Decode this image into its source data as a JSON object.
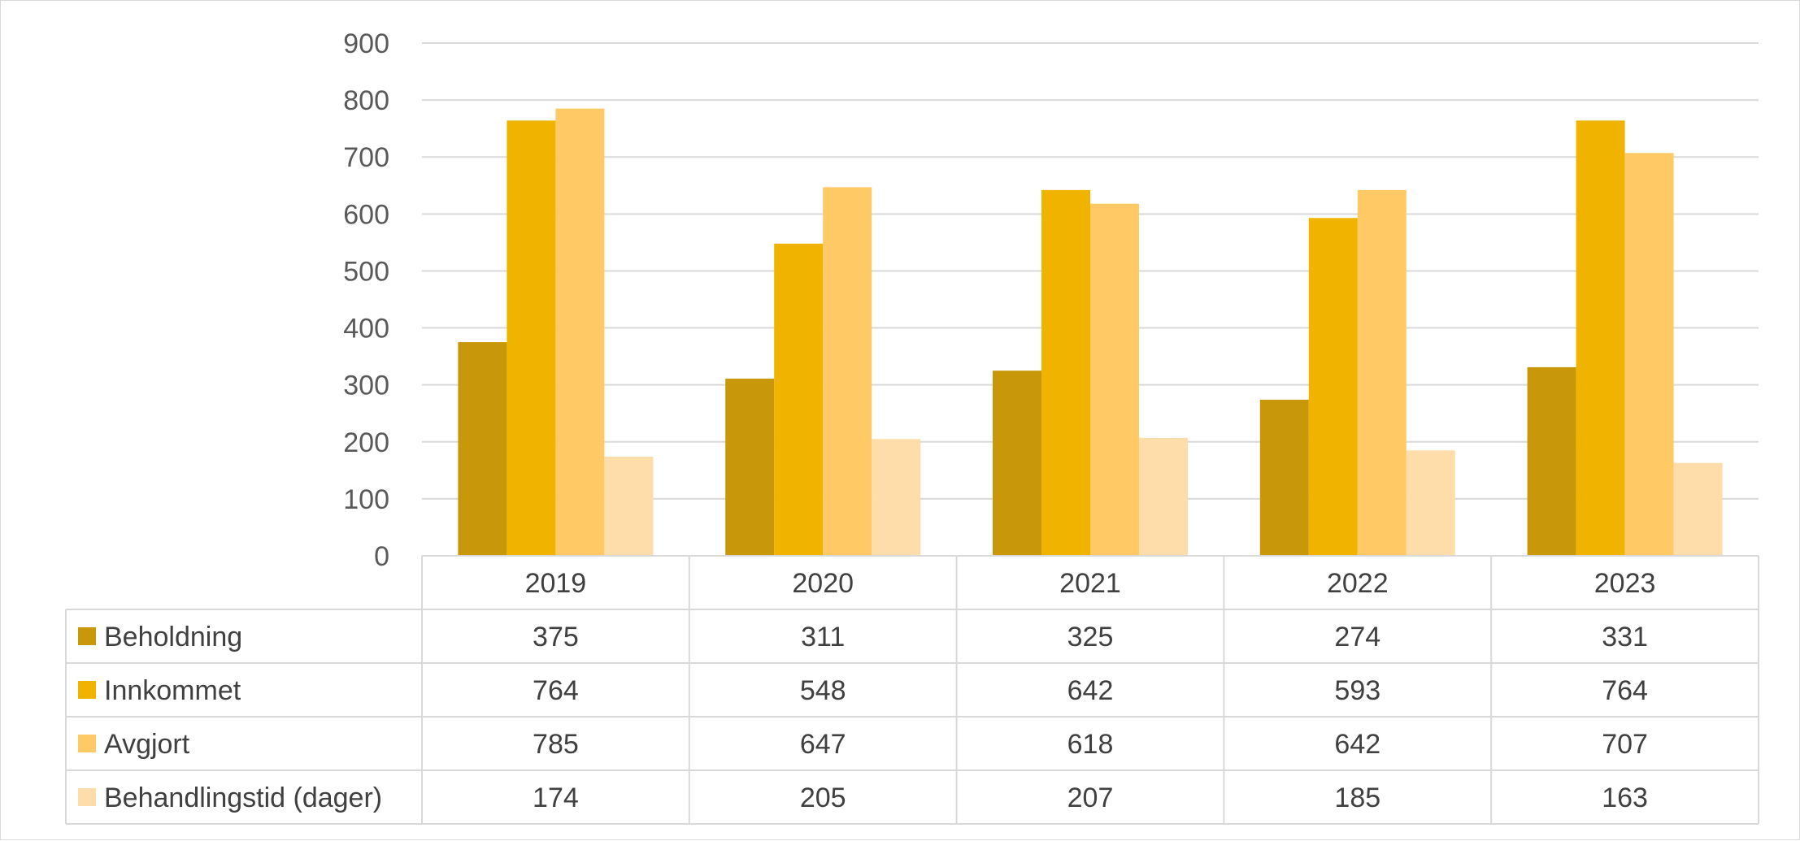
{
  "chart_data": {
    "type": "bar",
    "title": "",
    "xlabel": "",
    "ylabel": "",
    "ylim": [
      0,
      900
    ],
    "yticks": [
      0,
      100,
      200,
      300,
      400,
      500,
      600,
      700,
      800,
      900
    ],
    "grid": true,
    "legend": "data-table-left",
    "categories": [
      "2019",
      "2020",
      "2021",
      "2022",
      "2023"
    ],
    "series": [
      {
        "name": "Beholdning",
        "color": "#c9980a",
        "values": [
          375,
          311,
          325,
          274,
          331
        ]
      },
      {
        "name": "Innkommet",
        "color": "#f0b400",
        "values": [
          764,
          548,
          642,
          593,
          764
        ]
      },
      {
        "name": "Avgjort",
        "color": "#ffc966",
        "values": [
          785,
          647,
          618,
          642,
          707
        ]
      },
      {
        "name": "Behandlingstid (dager)",
        "color": "#ffddab",
        "values": [
          174,
          205,
          207,
          185,
          163
        ]
      }
    ]
  }
}
